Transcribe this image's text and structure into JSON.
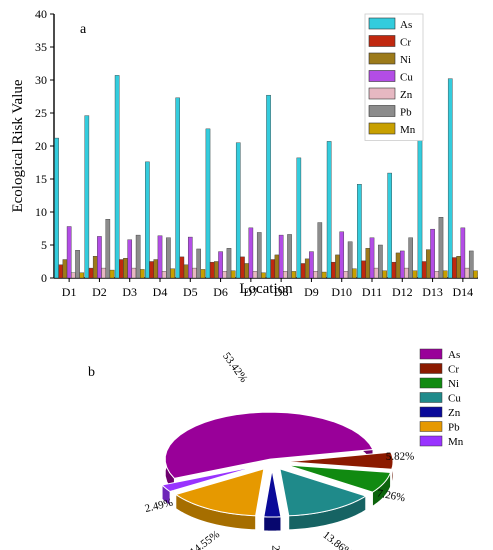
{
  "chart_data": [
    {
      "type": "bar",
      "panel_label": "a",
      "xlabel": "Location",
      "ylabel": "Ecological Risk Value",
      "ylim": [
        0,
        40
      ],
      "yticks": [
        0,
        5,
        10,
        15,
        20,
        25,
        30,
        35,
        40
      ],
      "legend_position": "top-right",
      "categories": [
        "D1",
        "D2",
        "D3",
        "D4",
        "D5",
        "D6",
        "D7",
        "D8",
        "D9",
        "D10",
        "D11",
        "D12",
        "D13",
        "D14"
      ],
      "series": [
        {
          "name": "As",
          "color": "#33ccdd",
          "values": [
            21.2,
            24.6,
            30.7,
            17.6,
            27.3,
            22.6,
            20.5,
            27.7,
            18.2,
            20.7,
            14.2,
            15.9,
            22.8,
            30.2
          ]
        },
        {
          "name": "Cr",
          "color": "#c0280f",
          "values": [
            2.0,
            1.5,
            2.8,
            2.5,
            3.2,
            2.4,
            3.2,
            2.8,
            2.2,
            2.4,
            2.6,
            2.4,
            2.5,
            3.1
          ]
        },
        {
          "name": "Ni",
          "color": "#9c7a1a",
          "values": [
            2.8,
            3.3,
            3.0,
            2.8,
            2.0,
            2.5,
            2.2,
            3.5,
            2.9,
            3.5,
            4.5,
            3.8,
            4.3,
            3.3
          ]
        },
        {
          "name": "Cu",
          "color": "#b34de6",
          "values": [
            7.8,
            6.3,
            5.8,
            6.4,
            6.2,
            4.0,
            7.6,
            6.5,
            4.0,
            7.0,
            6.1,
            4.1,
            7.4,
            7.6
          ]
        },
        {
          "name": "Zn",
          "color": "#e6b8c2",
          "values": [
            0.8,
            1.5,
            1.5,
            1.0,
            1.5,
            1.0,
            1.0,
            1.0,
            1.0,
            1.0,
            1.5,
            1.5,
            1.0,
            1.5
          ]
        },
        {
          "name": "Pb",
          "color": "#8c8c8c",
          "values": [
            4.2,
            8.9,
            6.5,
            6.1,
            4.4,
            4.5,
            6.9,
            6.6,
            8.4,
            5.5,
            5.0,
            6.1,
            9.2,
            4.1
          ]
        },
        {
          "name": "Mn",
          "color": "#c8a000",
          "values": [
            0.8,
            1.2,
            1.3,
            1.4,
            1.3,
            1.1,
            0.8,
            1.0,
            0.9,
            1.4,
            1.1,
            1.1,
            1.1,
            1.1
          ]
        }
      ]
    },
    {
      "type": "pie",
      "panel_label": "b",
      "legend_position": "right",
      "slices": [
        {
          "name": "As",
          "value": 53.42,
          "label": "53.42%",
          "color": "#990099"
        },
        {
          "name": "Cr",
          "value": 5.82,
          "label": "5.82%",
          "color": "#8b1a00"
        },
        {
          "name": "Ni",
          "value": 7.26,
          "label": "7.26%",
          "color": "#118a11"
        },
        {
          "name": "Cu",
          "value": 13.86,
          "label": "13.86%",
          "color": "#1f8a8a"
        },
        {
          "name": "Zn",
          "value": 2.59,
          "label": "2.59%",
          "color": "#0a0a99"
        },
        {
          "name": "Pb",
          "value": 14.55,
          "label": "14.55%",
          "color": "#e69900"
        },
        {
          "name": "Mn",
          "value": 2.49,
          "label": "2.49%",
          "color": "#9933ff"
        }
      ]
    }
  ]
}
